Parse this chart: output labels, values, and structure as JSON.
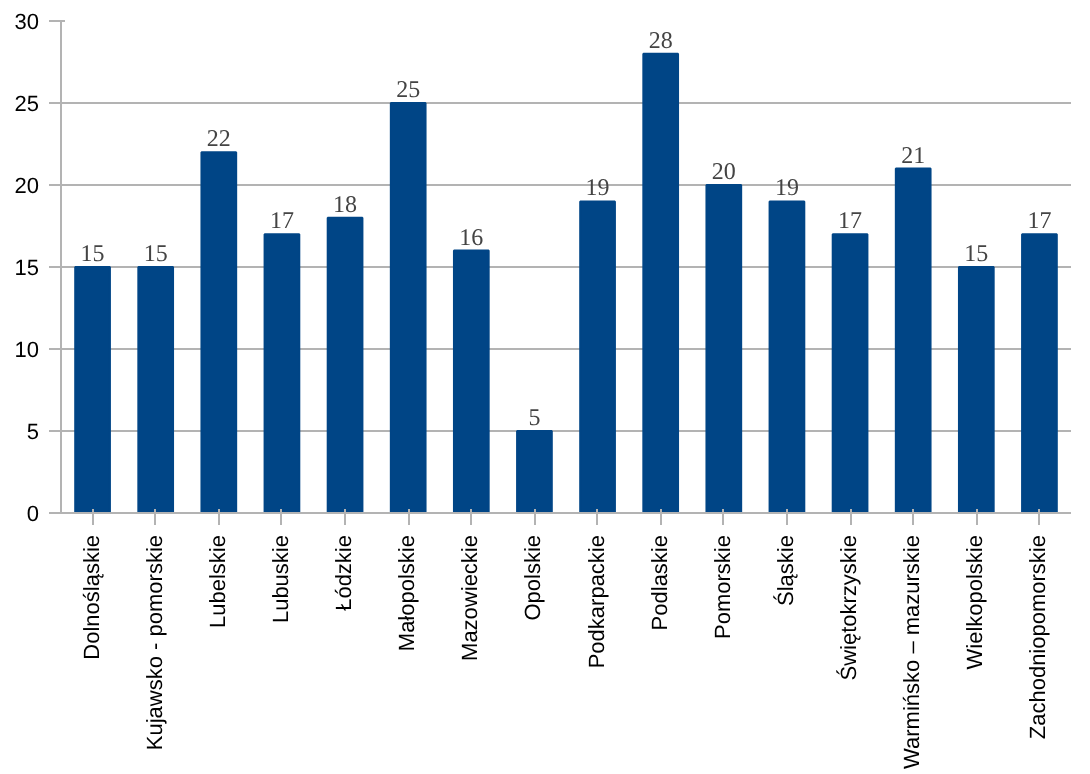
{
  "chart_data": {
    "type": "bar",
    "categories": [
      "Dolnośląskie",
      "Kujawsko - pomorskie",
      "Lubelskie",
      "Lubuskie",
      "Łódzkie",
      "Małopolskie",
      "Mazowieckie",
      "Opolskie",
      "Podkarpackie",
      "Podlaskie",
      "Pomorskie",
      "Śląskie",
      "Świętokrzyskie",
      "Warmińsko – mazurskie",
      "Wielkopolskie",
      "Zachodniopomorskie"
    ],
    "values": [
      15,
      15,
      22,
      17,
      18,
      25,
      16,
      5,
      19,
      28,
      20,
      19,
      17,
      21,
      15,
      17
    ],
    "color": "#004586",
    "ylim": [
      0,
      30
    ],
    "yticks": [
      0,
      5,
      10,
      15,
      20,
      25,
      30
    ],
    "grid": "y",
    "data_labels": true
  }
}
